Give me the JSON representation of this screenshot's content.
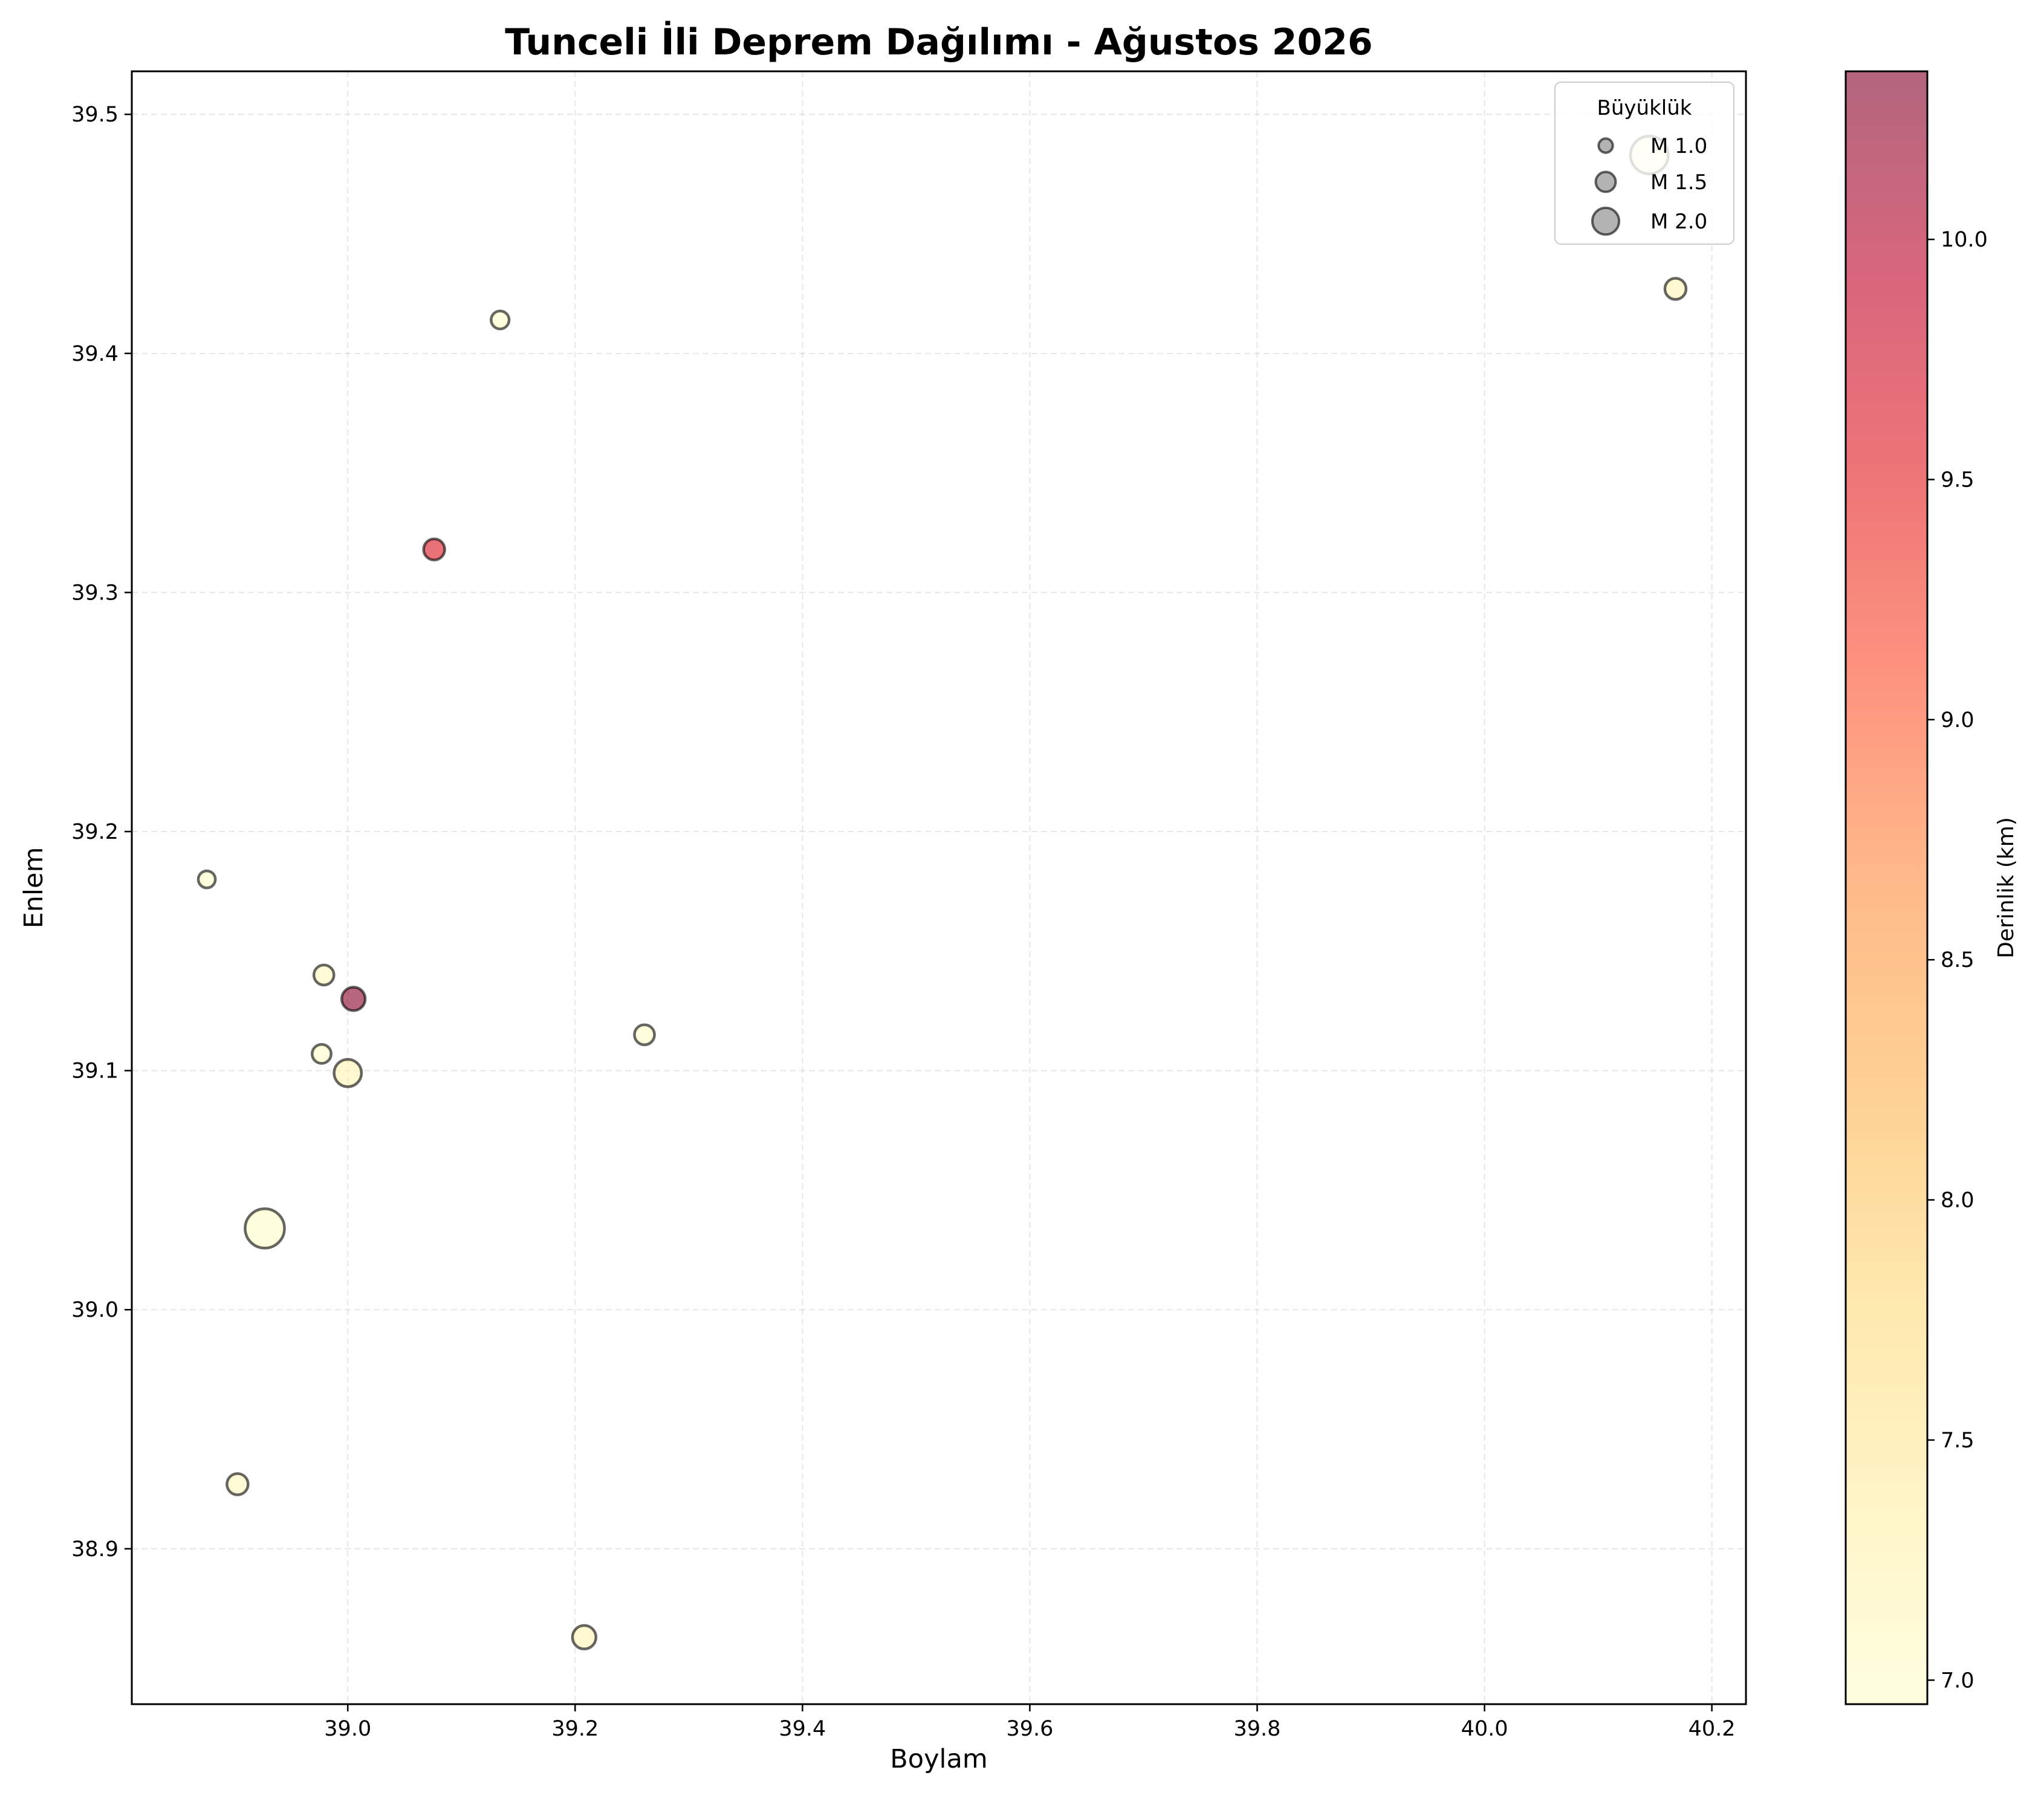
{
  "chart_data": {
    "type": "scatter",
    "title": "Tunceli İli Deprem Dağılımı - Ağustos 2026",
    "xlabel": "Boylam",
    "ylabel": "Enlem",
    "xlim": [
      38.81,
      40.23
    ],
    "ylim": [
      38.835,
      39.518
    ],
    "x_ticks": [
      39.0,
      39.2,
      39.4,
      39.6,
      39.8,
      40.0,
      40.2
    ],
    "x_tick_labels": [
      "39.0",
      "39.2",
      "39.4",
      "39.6",
      "39.8",
      "40.0",
      "40.2"
    ],
    "y_ticks": [
      38.9,
      39.0,
      39.1,
      39.2,
      39.3,
      39.4,
      39.5
    ],
    "y_tick_labels": [
      "38.9",
      "39.0",
      "39.1",
      "39.2",
      "39.3",
      "39.4",
      "39.5"
    ],
    "grid": true,
    "size_encoding": "magnitude",
    "color_encoding": "depth_km",
    "colormap": "YlOrRd",
    "points": [
      {
        "lon": 38.876,
        "lat": 39.18,
        "mag": 0.8,
        "depth": 7.0
      },
      {
        "lon": 38.903,
        "lat": 38.927,
        "mag": 1.2,
        "depth": 7.1
      },
      {
        "lon": 38.927,
        "lat": 39.034,
        "mag": 2.5,
        "depth": 7.0
      },
      {
        "lon": 38.977,
        "lat": 39.107,
        "mag": 1.0,
        "depth": 7.0
      },
      {
        "lon": 38.979,
        "lat": 39.14,
        "mag": 1.1,
        "depth": 7.1
      },
      {
        "lon": 39.0,
        "lat": 39.099,
        "mag": 1.7,
        "depth": 7.2
      },
      {
        "lon": 39.005,
        "lat": 39.13,
        "mag": 1.4,
        "depth": 10.3
      },
      {
        "lon": 39.076,
        "lat": 39.318,
        "mag": 1.2,
        "depth": 9.6
      },
      {
        "lon": 39.134,
        "lat": 39.414,
        "mag": 0.9,
        "depth": 7.0
      },
      {
        "lon": 39.208,
        "lat": 38.863,
        "mag": 1.4,
        "depth": 7.2
      },
      {
        "lon": 39.261,
        "lat": 39.115,
        "mag": 1.1,
        "depth": 7.0
      },
      {
        "lon": 40.145,
        "lat": 39.483,
        "mag": 2.4,
        "depth": 7.0
      },
      {
        "lon": 40.168,
        "lat": 39.427,
        "mag": 1.2,
        "depth": 7.2
      }
    ],
    "legend": {
      "title": "Büyüklük",
      "position": "upper right",
      "entries": [
        {
          "label": "M 1.0",
          "mag": 1.0
        },
        {
          "label": "M 1.5",
          "mag": 1.5
        },
        {
          "label": "M 2.0",
          "mag": 2.0
        }
      ]
    },
    "colorbar": {
      "label": "Derinlik (km)",
      "range": [
        6.95,
        10.35
      ],
      "ticks": [
        7.0,
        7.5,
        8.0,
        8.5,
        9.0,
        9.5,
        10.0
      ],
      "tick_labels": [
        "7.0",
        "7.5",
        "8.0",
        "8.5",
        "9.0",
        "9.5",
        "10.0"
      ]
    }
  }
}
